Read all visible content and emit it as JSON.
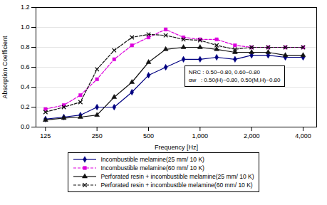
{
  "chart_data": {
    "type": "line",
    "x": [
      125,
      160,
      200,
      250,
      315,
      400,
      500,
      630,
      800,
      1000,
      1250,
      1600,
      2000,
      2500,
      3150,
      4000
    ],
    "series": [
      {
        "name": "Incombustible melamine(25 mm/ 10 K)",
        "color": "#000080",
        "line_style": "solid",
        "marker": "diamond",
        "values": [
          0.08,
          0.1,
          0.12,
          0.2,
          0.2,
          0.35,
          0.52,
          0.6,
          0.68,
          0.68,
          0.7,
          0.68,
          0.72,
          0.72,
          0.7,
          0.7
        ]
      },
      {
        "name": "Incombustible melamine(60 mm/ 10 K)",
        "color": "#dd00dd",
        "line_style": "dashed",
        "marker": "square",
        "values": [
          0.18,
          0.22,
          0.32,
          0.48,
          0.68,
          0.82,
          0.9,
          0.98,
          0.9,
          0.88,
          0.88,
          0.82,
          0.8,
          0.8,
          0.8,
          0.8
        ]
      },
      {
        "name": "Perforated resin + incombustible melamine(25 mm/ 10 K)",
        "color": "#111111",
        "line_style": "solid",
        "marker": "triangle",
        "values": [
          0.07,
          0.09,
          0.1,
          0.12,
          0.3,
          0.45,
          0.65,
          0.78,
          0.8,
          0.8,
          0.78,
          0.75,
          0.75,
          0.75,
          0.72,
          0.72
        ]
      },
      {
        "name": "Perforated resin + incombustble melamine(60 mm/ 10 K)",
        "color": "#111111",
        "line_style": "dashed",
        "marker": "x",
        "values": [
          0.15,
          0.2,
          0.25,
          0.58,
          0.77,
          0.9,
          0.93,
          0.92,
          0.88,
          0.87,
          0.82,
          0.78,
          0.8,
          0.8,
          0.8,
          0.8
        ]
      }
    ],
    "xlabel": "Frequency [Hz]",
    "ylabel": "Absorption Coefficient",
    "log": "x",
    "xlim": [
      110,
      4800
    ],
    "xticks": [
      125,
      250,
      500,
      {
        "value": 1000,
        "label": "1,000"
      },
      {
        "value": 2000,
        "label": "2,000"
      },
      {
        "value": 4000,
        "label": "4,000"
      }
    ],
    "ylim": [
      0.0,
      1.2
    ],
    "yticks": [
      {
        "value": 0.0,
        "label": "0.0"
      },
      0.2,
      0.4,
      0.6,
      0.8,
      {
        "value": 1.0,
        "label": "1.0"
      },
      1.2
    ],
    "grid": "y",
    "legend": "bottom",
    "annotations": [
      "NRC : 0.50~0.80, 0.60~0.80",
      "αw   : 0.50(H)~0.80, 0.50(M,H)~0.80"
    ]
  }
}
